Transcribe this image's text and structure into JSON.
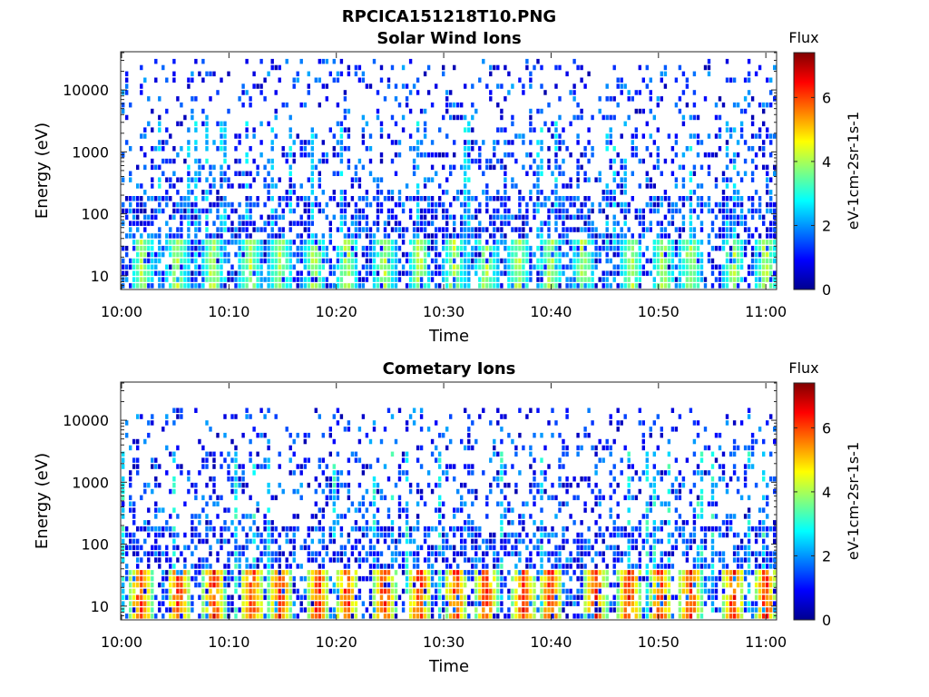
{
  "figure": {
    "suptitle": "RPCICA151218T10.PNG"
  },
  "chart_data": [
    {
      "type": "heatmap",
      "title": "Solar Wind Ions",
      "xlabel": "Time",
      "ylabel": "Energy (eV)",
      "x_ticks": [
        "10:00",
        "10:10",
        "10:20",
        "10:30",
        "10:40",
        "10:50",
        "11:00"
      ],
      "x_range": [
        "10:00",
        "11:01"
      ],
      "y_scale": "log",
      "y_ticks": [
        10,
        100,
        1000,
        10000
      ],
      "y_tick_labels": [
        "10",
        "100",
        "1000",
        "10000"
      ],
      "y_range": [
        6,
        40000
      ],
      "colorbar": {
        "title": "Flux",
        "label": "eV-1cm-2sr-1s-1",
        "ticks": [
          0,
          2,
          4,
          6
        ],
        "range": [
          0,
          7.4
        ],
        "colormap": "jet"
      },
      "pattern": {
        "bursts_min": [
          2,
          5.2,
          8.5,
          12,
          14.8,
          18,
          21,
          24.5,
          27.8,
          31,
          34,
          37,
          40,
          43,
          47.5,
          50.5,
          53,
          57,
          60
        ],
        "burst_peak_flux": 4.6,
        "burst_energy_range_eV": [
          6,
          40
        ],
        "background_flux_range": [
          0.3,
          2.2
        ],
        "background_energy_range_eV": [
          6,
          30000
        ],
        "streak_peak_flux": 3.0
      }
    },
    {
      "type": "heatmap",
      "title": "Cometary Ions",
      "xlabel": "Time",
      "ylabel": "Energy (eV)",
      "x_ticks": [
        "10:00",
        "10:10",
        "10:20",
        "10:30",
        "10:40",
        "10:50",
        "11:00"
      ],
      "x_range": [
        "10:00",
        "11:01"
      ],
      "y_scale": "log",
      "y_ticks": [
        10,
        100,
        1000,
        10000
      ],
      "y_tick_labels": [
        "10",
        "100",
        "1000",
        "10000"
      ],
      "y_range": [
        6,
        40000
      ],
      "colorbar": {
        "title": "Flux",
        "label": "eV-1cm-2sr-1s-1",
        "ticks": [
          0,
          2,
          4,
          6
        ],
        "range": [
          0,
          7.4
        ],
        "colormap": "jet"
      },
      "pattern": {
        "bursts_min": [
          1.8,
          5.4,
          8.6,
          12.2,
          14.8,
          18.3,
          21,
          24.5,
          27.8,
          31.2,
          34,
          37.5,
          40,
          44.2,
          47.3,
          50.2,
          53,
          57,
          60
        ],
        "burst_peak_flux": 7.0,
        "burst_energy_range_eV": [
          6,
          40
        ],
        "background_flux_range": [
          0.3,
          2.2
        ],
        "background_energy_range_eV": [
          6,
          15000
        ],
        "streak_peak_flux": 3.4
      }
    }
  ]
}
